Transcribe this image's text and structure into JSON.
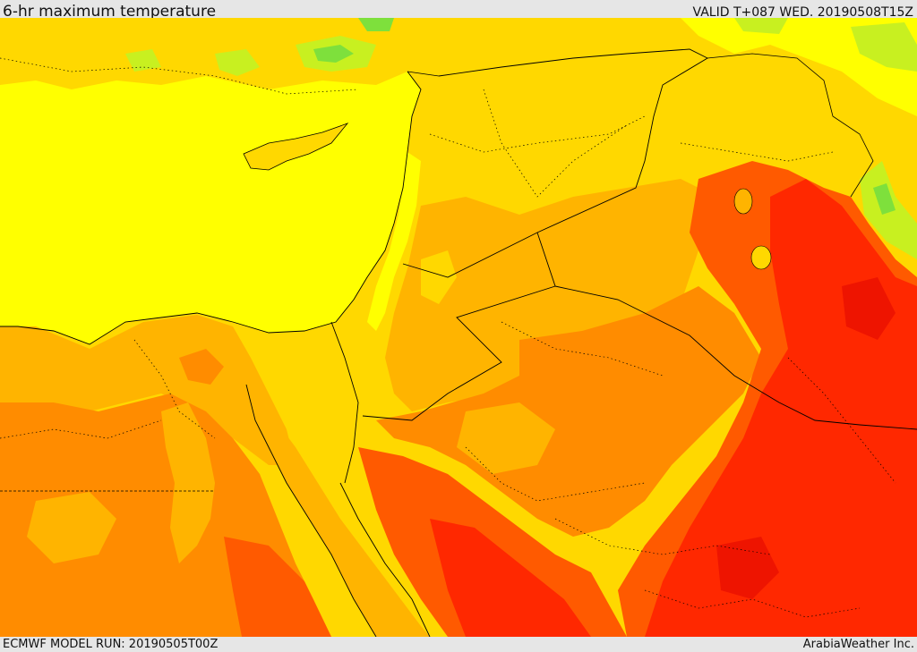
{
  "header": {
    "title": "6-hr maximum temperature",
    "valid": "VALID T+087 WED. 20190508T15Z"
  },
  "footer": {
    "model_run": "ECMWF MODEL RUN: 20190505T00Z",
    "credit": "ArabiaWeather Inc."
  },
  "map": {
    "palette": {
      "green": "#7ee03c",
      "light_green": "#c8f020",
      "yellow": "#ffff00",
      "gold": "#ffd800",
      "amber": "#ffb400",
      "orange": "#ff8c00",
      "red_orange": "#ff5a00",
      "red": "#ff2800",
      "deep_red": "#ee1400",
      "border": "#000000"
    }
  }
}
